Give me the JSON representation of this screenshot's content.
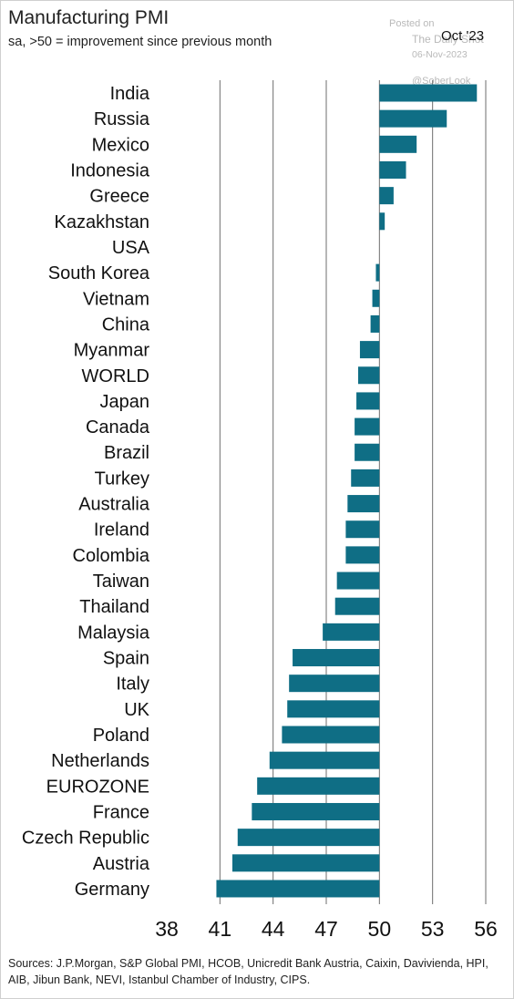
{
  "header": {
    "title": "Manufacturing PMI",
    "subtitle": "sa, >50 = improvement since previous month",
    "period": "Oct '23"
  },
  "watermark": {
    "posted_on": "Posted on",
    "site": "The Daily Shot",
    "date": "06-Nov-2023",
    "handle": "@SoberLook"
  },
  "footer": {
    "sources": "Sources: J.P.Morgan, S&P Global PMI, HCOB, Unicredit Bank Austria, Caixin, Davivienda, HPI, AIB, Jibun Bank, NEVI, Istanbul Chamber of Industry, CIPS."
  },
  "chart_data": {
    "type": "bar",
    "orientation": "horizontal",
    "baseline": 50,
    "title": "Manufacturing PMI",
    "subtitle": "sa, >50 = improvement since previous month",
    "categories": [
      "India",
      "Russia",
      "Mexico",
      "Indonesia",
      "Greece",
      "Kazakhstan",
      "USA",
      "South Korea",
      "Vietnam",
      "China",
      "Myanmar",
      "WORLD",
      "Japan",
      "Canada",
      "Brazil",
      "Turkey",
      "Australia",
      "Ireland",
      "Colombia",
      "Taiwan",
      "Thailand",
      "Malaysia",
      "Spain",
      "Italy",
      "UK",
      "Poland",
      "Netherlands",
      "EUROZONE",
      "France",
      "Czech Republic",
      "Austria",
      "Germany"
    ],
    "values": [
      55.5,
      53.8,
      52.1,
      51.5,
      50.8,
      50.3,
      50.0,
      49.8,
      49.6,
      49.5,
      48.9,
      48.8,
      48.7,
      48.6,
      48.6,
      48.4,
      48.2,
      48.1,
      48.1,
      47.6,
      47.5,
      46.8,
      45.1,
      44.9,
      44.8,
      44.5,
      43.8,
      43.1,
      42.8,
      42.0,
      41.7,
      40.8
    ],
    "xlim": [
      38,
      56
    ],
    "xticks": [
      38,
      41,
      44,
      47,
      50,
      53,
      56
    ],
    "grid": true,
    "bar_color": "#0f6e85",
    "grid_color": "#6e6e6e"
  }
}
